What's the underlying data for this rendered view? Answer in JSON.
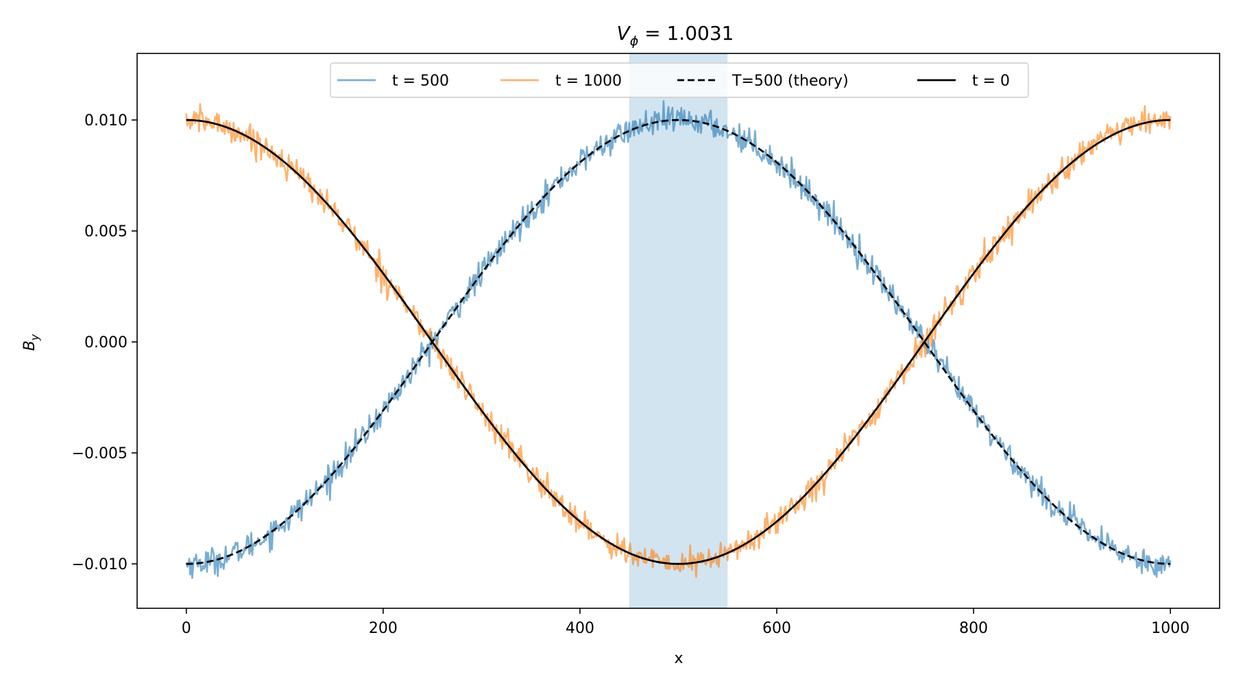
{
  "chart_data": {
    "type": "line",
    "title_main": "V",
    "title_sub": "ϕ",
    "title_value": " = 1.0031",
    "xlabel": "x",
    "ylabel_main": "B",
    "ylabel_sub": "y",
    "xlim": [
      -50,
      1050
    ],
    "ylim": [
      -0.012,
      0.013
    ],
    "xticks": [
      0,
      200,
      400,
      600,
      800,
      1000
    ],
    "xtick_labels": [
      "0",
      "200",
      "400",
      "600",
      "800",
      "1000"
    ],
    "yticks": [
      -0.01,
      -0.005,
      0.0,
      0.005,
      0.01
    ],
    "ytick_labels": [
      "−0.010",
      "−0.005",
      "0.000",
      "0.005",
      "0.010"
    ],
    "shaded_region": {
      "x_start": 450,
      "x_end": 550,
      "color": "#1f77b4",
      "alpha": 0.2
    },
    "amplitude": 0.01,
    "x_range": [
      0,
      1000
    ],
    "noise_amplitude": 0.0003,
    "series": [
      {
        "name": "t = 500",
        "color": "#1f77b4",
        "alpha": 0.6,
        "style": "solid",
        "shape": "-cos",
        "noisy": true
      },
      {
        "name": "t = 1000",
        "color": "#ff7f0e",
        "alpha": 0.6,
        "style": "solid",
        "shape": "cos",
        "noisy": true
      },
      {
        "name": "T=500 (theory)",
        "color": "#000000",
        "alpha": 1,
        "style": "dashed",
        "shape": "-cos",
        "noisy": false
      },
      {
        "name": "t = 0",
        "color": "#000000",
        "alpha": 1,
        "style": "solid",
        "shape": "cos",
        "noisy": false
      }
    ],
    "legend_position": "upper-center"
  }
}
